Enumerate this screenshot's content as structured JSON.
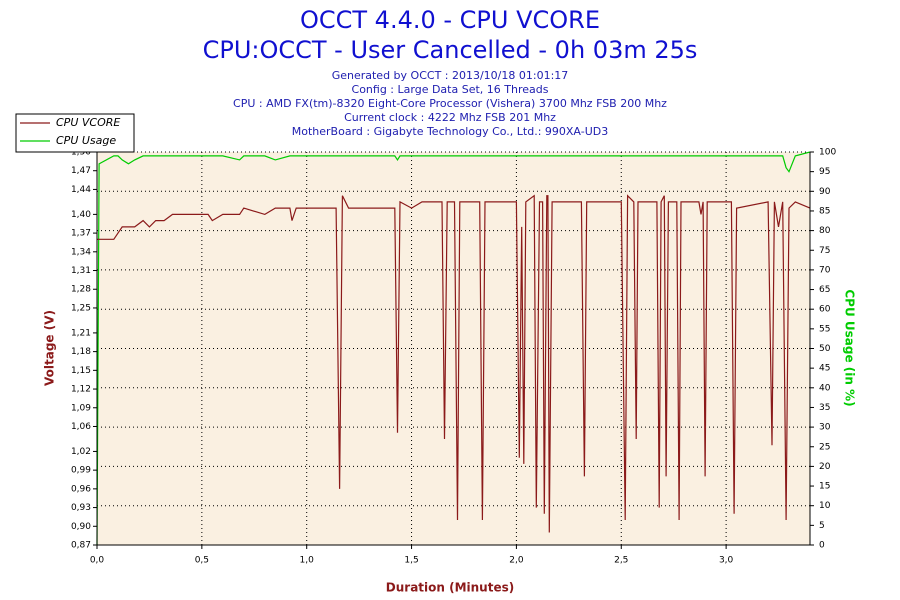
{
  "chart_data": {
    "type": "line",
    "title": "OCCT 4.4.0 - CPU VCORE",
    "subtitle": "CPU:OCCT - User Cancelled - 0h 03m 25s",
    "info": [
      "Generated by OCCT : 2013/10/18 01:01:17",
      "Config : Large Data Set, 16 Threads",
      "CPU : AMD FX(tm)-8320 Eight-Core Processor (Vishera) 3700 Mhz FSB 200 Mhz",
      "Current clock : 4222 Mhz FSB 201 Mhz",
      "MotherBoard : Gigabyte Technology Co., Ltd.: 990XA-UD3"
    ],
    "x_label": "Duration (Minutes)",
    "y_label": "Voltage (V)",
    "y2_label": "CPU Usage (in %)",
    "legend": "top-left",
    "grid": true,
    "xlim": [
      0,
      3.4
    ],
    "xticks": [
      {
        "value": 0,
        "label": "0,0"
      },
      {
        "value": 0.5,
        "label": "0,5"
      },
      {
        "value": 1,
        "label": "1,0"
      },
      {
        "value": 1.5,
        "label": "1,5"
      },
      {
        "value": 2,
        "label": "2,0"
      },
      {
        "value": 2.5,
        "label": "2,5"
      },
      {
        "value": 3,
        "label": "3,0"
      }
    ],
    "ylim": [
      0.87,
      1.5
    ],
    "yticks": [
      {
        "value": 0.87,
        "label": "0,87"
      },
      {
        "value": 0.9,
        "label": "0,90"
      },
      {
        "value": 0.93,
        "label": "0,93"
      },
      {
        "value": 0.96,
        "label": "0,96"
      },
      {
        "value": 0.99,
        "label": "0,99"
      },
      {
        "value": 1.02,
        "label": "1,02"
      },
      {
        "value": 1.06,
        "label": "1,06"
      },
      {
        "value": 1.09,
        "label": "1,09"
      },
      {
        "value": 1.12,
        "label": "1,12"
      },
      {
        "value": 1.15,
        "label": "1,15"
      },
      {
        "value": 1.18,
        "label": "1,18"
      },
      {
        "value": 1.21,
        "label": "1,21"
      },
      {
        "value": 1.25,
        "label": "1,25"
      },
      {
        "value": 1.28,
        "label": "1,28"
      },
      {
        "value": 1.31,
        "label": "1,31"
      },
      {
        "value": 1.34,
        "label": "1,34"
      },
      {
        "value": 1.37,
        "label": "1,37"
      },
      {
        "value": 1.4,
        "label": "1,40"
      },
      {
        "value": 1.44,
        "label": "1,44"
      },
      {
        "value": 1.47,
        "label": "1,47"
      },
      {
        "value": 1.5,
        "label": "1,50"
      }
    ],
    "y2lim": [
      0,
      100
    ],
    "y2ticks": [
      0,
      5,
      10,
      15,
      20,
      25,
      30,
      35,
      40,
      45,
      50,
      55,
      60,
      65,
      70,
      75,
      80,
      85,
      90,
      95,
      100
    ],
    "x": [
      0,
      0.01,
      0.08,
      0.1,
      0.12,
      0.15,
      0.18,
      0.22,
      0.25,
      0.28,
      0.32,
      0.36,
      0.5,
      0.53,
      0.55,
      0.6,
      0.68,
      0.7,
      0.8,
      0.85,
      0.92,
      0.93,
      0.95,
      1.1,
      1.14,
      1.157,
      1.17,
      1.2,
      1.42,
      1.433,
      1.445,
      1.5,
      1.55,
      1.645,
      1.657,
      1.67,
      1.705,
      1.719,
      1.73,
      1.825,
      1.838,
      1.85,
      1.98,
      2,
      2.014,
      2.025,
      2.035,
      2.045,
      2.085,
      2.095,
      2.11,
      2.125,
      2.133,
      2.145,
      2.15,
      2.157,
      2.17,
      2.31,
      2.324,
      2.335,
      2.5,
      2.519,
      2.53,
      2.56,
      2.571,
      2.58,
      2.67,
      2.681,
      2.69,
      2.705,
      2.714,
      2.725,
      2.765,
      2.776,
      2.785,
      2.87,
      2.88,
      2.89,
      2.9,
      2.91,
      3.025,
      3.038,
      3.05,
      3.2,
      3.219,
      3.23,
      3.25,
      3.27,
      3.286,
      3.3,
      3.33,
      3.4
    ],
    "series": [
      {
        "name": "CPU VCORE",
        "color": "#8b1a1a",
        "values": [
          1.36,
          1.36,
          1.36,
          1.37,
          1.38,
          1.38,
          1.38,
          1.39,
          1.38,
          1.39,
          1.39,
          1.4,
          1.4,
          1.4,
          1.39,
          1.4,
          1.4,
          1.41,
          1.4,
          1.41,
          1.41,
          1.39,
          1.41,
          1.41,
          1.41,
          0.96,
          1.43,
          1.41,
          1.41,
          1.05,
          1.42,
          1.41,
          1.42,
          1.42,
          1.04,
          1.42,
          1.42,
          0.91,
          1.42,
          1.42,
          0.91,
          1.42,
          1.42,
          1.42,
          1.01,
          1.38,
          1,
          1.42,
          1.43,
          0.93,
          1.42,
          1.42,
          0.92,
          1.43,
          1.43,
          0.89,
          1.42,
          1.42,
          0.98,
          1.42,
          1.42,
          0.91,
          1.43,
          1.42,
          1.04,
          1.42,
          1.42,
          0.93,
          1.42,
          1.43,
          0.98,
          1.42,
          1.42,
          0.91,
          1.42,
          1.42,
          1.4,
          1.42,
          0.98,
          1.42,
          1.42,
          0.92,
          1.41,
          1.42,
          1.03,
          1.42,
          1.38,
          1.42,
          0.91,
          1.41,
          1.42,
          1.41
        ]
      },
      {
        "name": "CPU Usage",
        "color": "#00cc00",
        "axis": "y2",
        "values": [
          0,
          97,
          99,
          99,
          98,
          97,
          98,
          99,
          99,
          99,
          99,
          99,
          99,
          99,
          99,
          99,
          98,
          99,
          99,
          98,
          99,
          99,
          99,
          99,
          99,
          99,
          99,
          99,
          99,
          98,
          99,
          99,
          99,
          99,
          99,
          99,
          99,
          99,
          99,
          99,
          99,
          99,
          99,
          99,
          99,
          99,
          99,
          99,
          99,
          99,
          99,
          99,
          99,
          99,
          99,
          99,
          99,
          99,
          99,
          99,
          99,
          99,
          99,
          99,
          99,
          99,
          99,
          99,
          99,
          99,
          99,
          99,
          99,
          99,
          99,
          99,
          99,
          99,
          99,
          99,
          99,
          99,
          99,
          99,
          99,
          99,
          99,
          99,
          96,
          95,
          99,
          100
        ]
      }
    ]
  }
}
